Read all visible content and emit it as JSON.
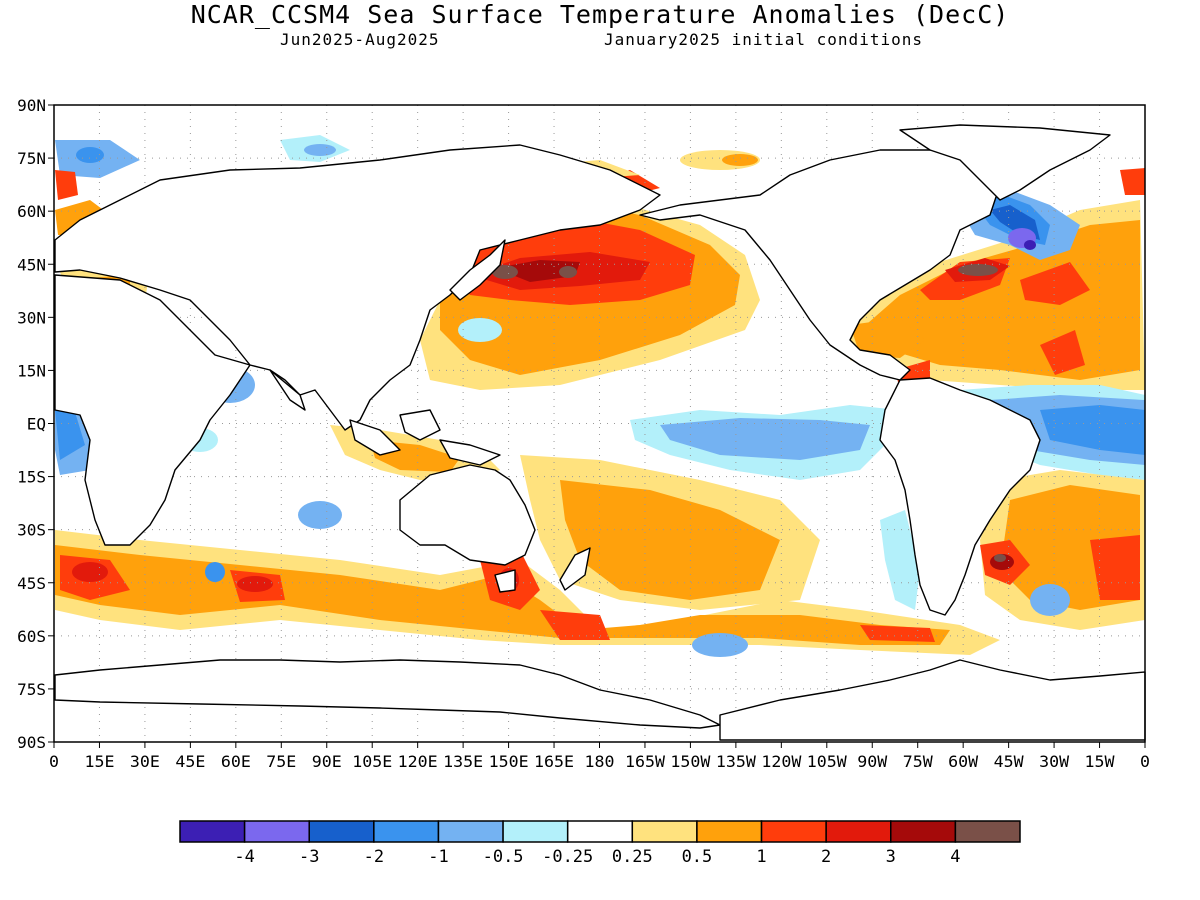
{
  "header": {
    "title": "NCAR_CCSM4 Sea Surface Temperature Anomalies (DecC)",
    "period": "Jun2025-Aug2025",
    "init": "January2025 initial conditions"
  },
  "map": {
    "lat_labels": [
      "90N",
      "75N",
      "60N",
      "45N",
      "30N",
      "15N",
      "EQ",
      "15S",
      "30S",
      "45S",
      "60S",
      "75S",
      "90S"
    ],
    "lon_labels": [
      "0",
      "15E",
      "30E",
      "45E",
      "60E",
      "75E",
      "90E",
      "105E",
      "120E",
      "135E",
      "150E",
      "165E",
      "180",
      "165W",
      "150W",
      "135W",
      "120W",
      "105W",
      "90W",
      "75W",
      "60W",
      "45W",
      "30W",
      "15W",
      "0"
    ]
  },
  "colorbar": {
    "colors": [
      "#3c1fb4",
      "#7b68ee",
      "#1760cc",
      "#3a93ee",
      "#74b2f2",
      "#b3f0fa",
      "#ffffff",
      "#ffe27e",
      "#ffa10c",
      "#ff3d0c",
      "#e21a0c",
      "#a50a0a",
      "#7a5048"
    ],
    "labels": [
      "-4",
      "-3",
      "-2",
      "-1",
      "-0.5",
      "-0.25",
      "0.25",
      "0.5",
      "1",
      "2",
      "3",
      "4"
    ]
  }
}
